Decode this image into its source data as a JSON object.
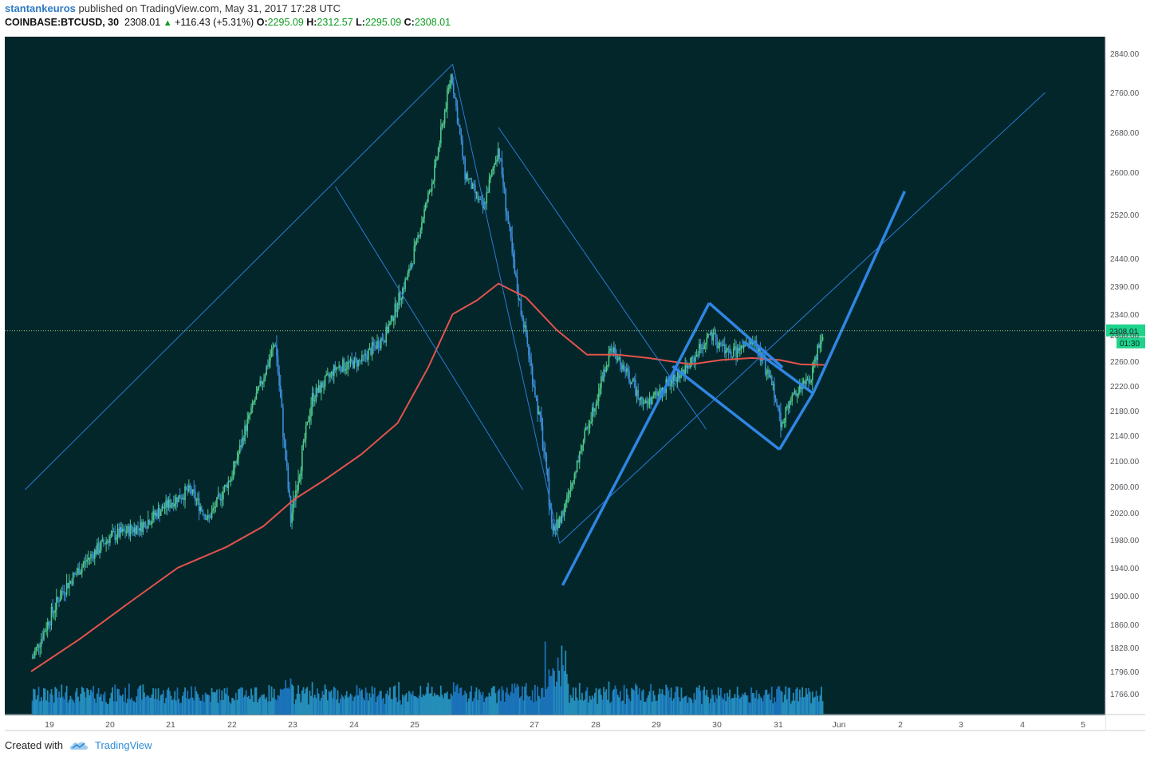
{
  "header": {
    "username": "stantankeuros",
    "published_text": "published on TradingView.com, May 31, 2017 17:28 UTC"
  },
  "quote": {
    "symbol": "COINBASE:BTCUSD, 30",
    "last": "2308.01",
    "arrow": "▲",
    "change": "+116.43 (+5.31%)",
    "open_label": "O:",
    "open": "2295.09",
    "high_label": "H:",
    "high": "2312.57",
    "low_label": "L:",
    "low": "2295.09",
    "close_label": "C:",
    "close": "2308.01"
  },
  "footer": {
    "created_with": "Created with",
    "brand": "TradingView",
    "logo_icon": "tradingview-cloud-icon"
  },
  "colors": {
    "background": "#03262b",
    "candle_up": "#4fc98a",
    "candle_down": "#3d8fdc",
    "volume": "#1e7fcf",
    "moving_average": "#e5534b",
    "trendline_thin": "#2a7bd4",
    "trendline_thick": "#2f86e3",
    "price_line": "#8fd08a",
    "price_label_bg": "#1ed38a"
  },
  "chart_data": {
    "type": "candlestick",
    "symbol": "COINBASE:BTCUSD",
    "interval": "30",
    "y_axis_ticks": [
      2840,
      2760,
      2680,
      2600,
      2520,
      2440,
      2390,
      2340,
      2300,
      2260,
      2220,
      2180,
      2140,
      2100,
      2060,
      2020,
      1980,
      1940,
      1900,
      1860,
      1828,
      1796,
      1766
    ],
    "y_axis_tick_labels": [
      "2840.00",
      "2760.00",
      "2680.00",
      "2600.00",
      "2520.00",
      "2440.00",
      "2390.00",
      "2340.00",
      "2300.00",
      "2260.00",
      "2220.00",
      "2180.00",
      "2140.00",
      "2100.00",
      "2060.00",
      "2020.00",
      "1980.00",
      "1940.00",
      "1900.00",
      "1860.00",
      "1828.00",
      "1796.00",
      "1766.00"
    ],
    "x_axis_tick_labels": [
      "19",
      "20",
      "21",
      "22",
      "23",
      "24",
      "25",
      "27",
      "28",
      "29",
      "30",
      "31",
      "Jun",
      "2",
      "3",
      "4",
      "5"
    ],
    "last_price_label": "2308.01",
    "countdown_label": "01:30",
    "approx_price_path": [
      {
        "t": 18.7,
        "p": 1810
      },
      {
        "t": 19.2,
        "p": 1905
      },
      {
        "t": 19.6,
        "p": 1950
      },
      {
        "t": 20.0,
        "p": 1985
      },
      {
        "t": 20.5,
        "p": 2000
      },
      {
        "t": 20.9,
        "p": 2030
      },
      {
        "t": 21.3,
        "p": 2055
      },
      {
        "t": 21.6,
        "p": 2010
      },
      {
        "t": 22.0,
        "p": 2080
      },
      {
        "t": 22.3,
        "p": 2180
      },
      {
        "t": 22.7,
        "p": 2290
      },
      {
        "t": 22.95,
        "p": 2010
      },
      {
        "t": 23.3,
        "p": 2200
      },
      {
        "t": 23.7,
        "p": 2250
      },
      {
        "t": 24.1,
        "p": 2260
      },
      {
        "t": 24.5,
        "p": 2300
      },
      {
        "t": 24.9,
        "p": 2420
      },
      {
        "t": 25.3,
        "p": 2600
      },
      {
        "t": 25.58,
        "p": 2800
      },
      {
        "t": 25.8,
        "p": 2600
      },
      {
        "t": 26.1,
        "p": 2530
      },
      {
        "t": 26.35,
        "p": 2650
      },
      {
        "t": 26.6,
        "p": 2420
      },
      {
        "t": 26.85,
        "p": 2270
      },
      {
        "t": 27.05,
        "p": 2150
      },
      {
        "t": 27.25,
        "p": 1990
      },
      {
        "t": 27.45,
        "p": 2030
      },
      {
        "t": 27.7,
        "p": 2120
      },
      {
        "t": 27.95,
        "p": 2200
      },
      {
        "t": 28.2,
        "p": 2280
      },
      {
        "t": 28.45,
        "p": 2240
      },
      {
        "t": 28.75,
        "p": 2190
      },
      {
        "t": 29.1,
        "p": 2220
      },
      {
        "t": 29.45,
        "p": 2250
      },
      {
        "t": 29.8,
        "p": 2300
      },
      {
        "t": 30.15,
        "p": 2270
      },
      {
        "t": 30.55,
        "p": 2290
      },
      {
        "t": 30.85,
        "p": 2220
      },
      {
        "t": 30.97,
        "p": 2160
      },
      {
        "t": 31.2,
        "p": 2210
      },
      {
        "t": 31.45,
        "p": 2230
      },
      {
        "t": 31.65,
        "p": 2308
      }
    ],
    "moving_average_path": [
      {
        "t": 18.7,
        "p": 1796
      },
      {
        "t": 19.5,
        "p": 1840
      },
      {
        "t": 20.3,
        "p": 1890
      },
      {
        "t": 21.1,
        "p": 1940
      },
      {
        "t": 21.9,
        "p": 1970
      },
      {
        "t": 22.5,
        "p": 2000
      },
      {
        "t": 23.0,
        "p": 2040
      },
      {
        "t": 23.5,
        "p": 2070
      },
      {
        "t": 24.1,
        "p": 2110
      },
      {
        "t": 24.7,
        "p": 2160
      },
      {
        "t": 25.2,
        "p": 2250
      },
      {
        "t": 25.6,
        "p": 2340
      },
      {
        "t": 26.0,
        "p": 2365
      },
      {
        "t": 26.35,
        "p": 2395
      },
      {
        "t": 26.8,
        "p": 2370
      },
      {
        "t": 27.3,
        "p": 2310
      },
      {
        "t": 27.8,
        "p": 2270
      },
      {
        "t": 28.3,
        "p": 2270
      },
      {
        "t": 28.8,
        "p": 2265
      },
      {
        "t": 29.5,
        "p": 2255
      },
      {
        "t": 30.0,
        "p": 2262
      },
      {
        "t": 30.5,
        "p": 2265
      },
      {
        "t": 30.95,
        "p": 2262
      },
      {
        "t": 31.3,
        "p": 2255
      },
      {
        "t": 31.7,
        "p": 2254
      }
    ]
  }
}
